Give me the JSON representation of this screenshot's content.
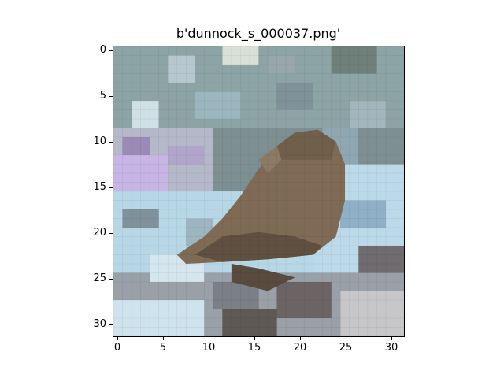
{
  "figure": {
    "title": "b'dunnock_s_000037.png'",
    "y_ticks": [
      "0",
      "5",
      "10",
      "15",
      "20",
      "25",
      "30"
    ],
    "x_ticks": [
      "0",
      "5",
      "10",
      "15",
      "20",
      "25",
      "30"
    ],
    "image_size": [
      32,
      32
    ]
  },
  "colors": {
    "background_blue": "#a9c9db",
    "light_blue": "#cfe6f3",
    "lavender": "#b6a6d8",
    "grey_green": "#6f7a72",
    "bird_brown": "#7f6b55",
    "dark_brown": "#5a4b3f"
  }
}
